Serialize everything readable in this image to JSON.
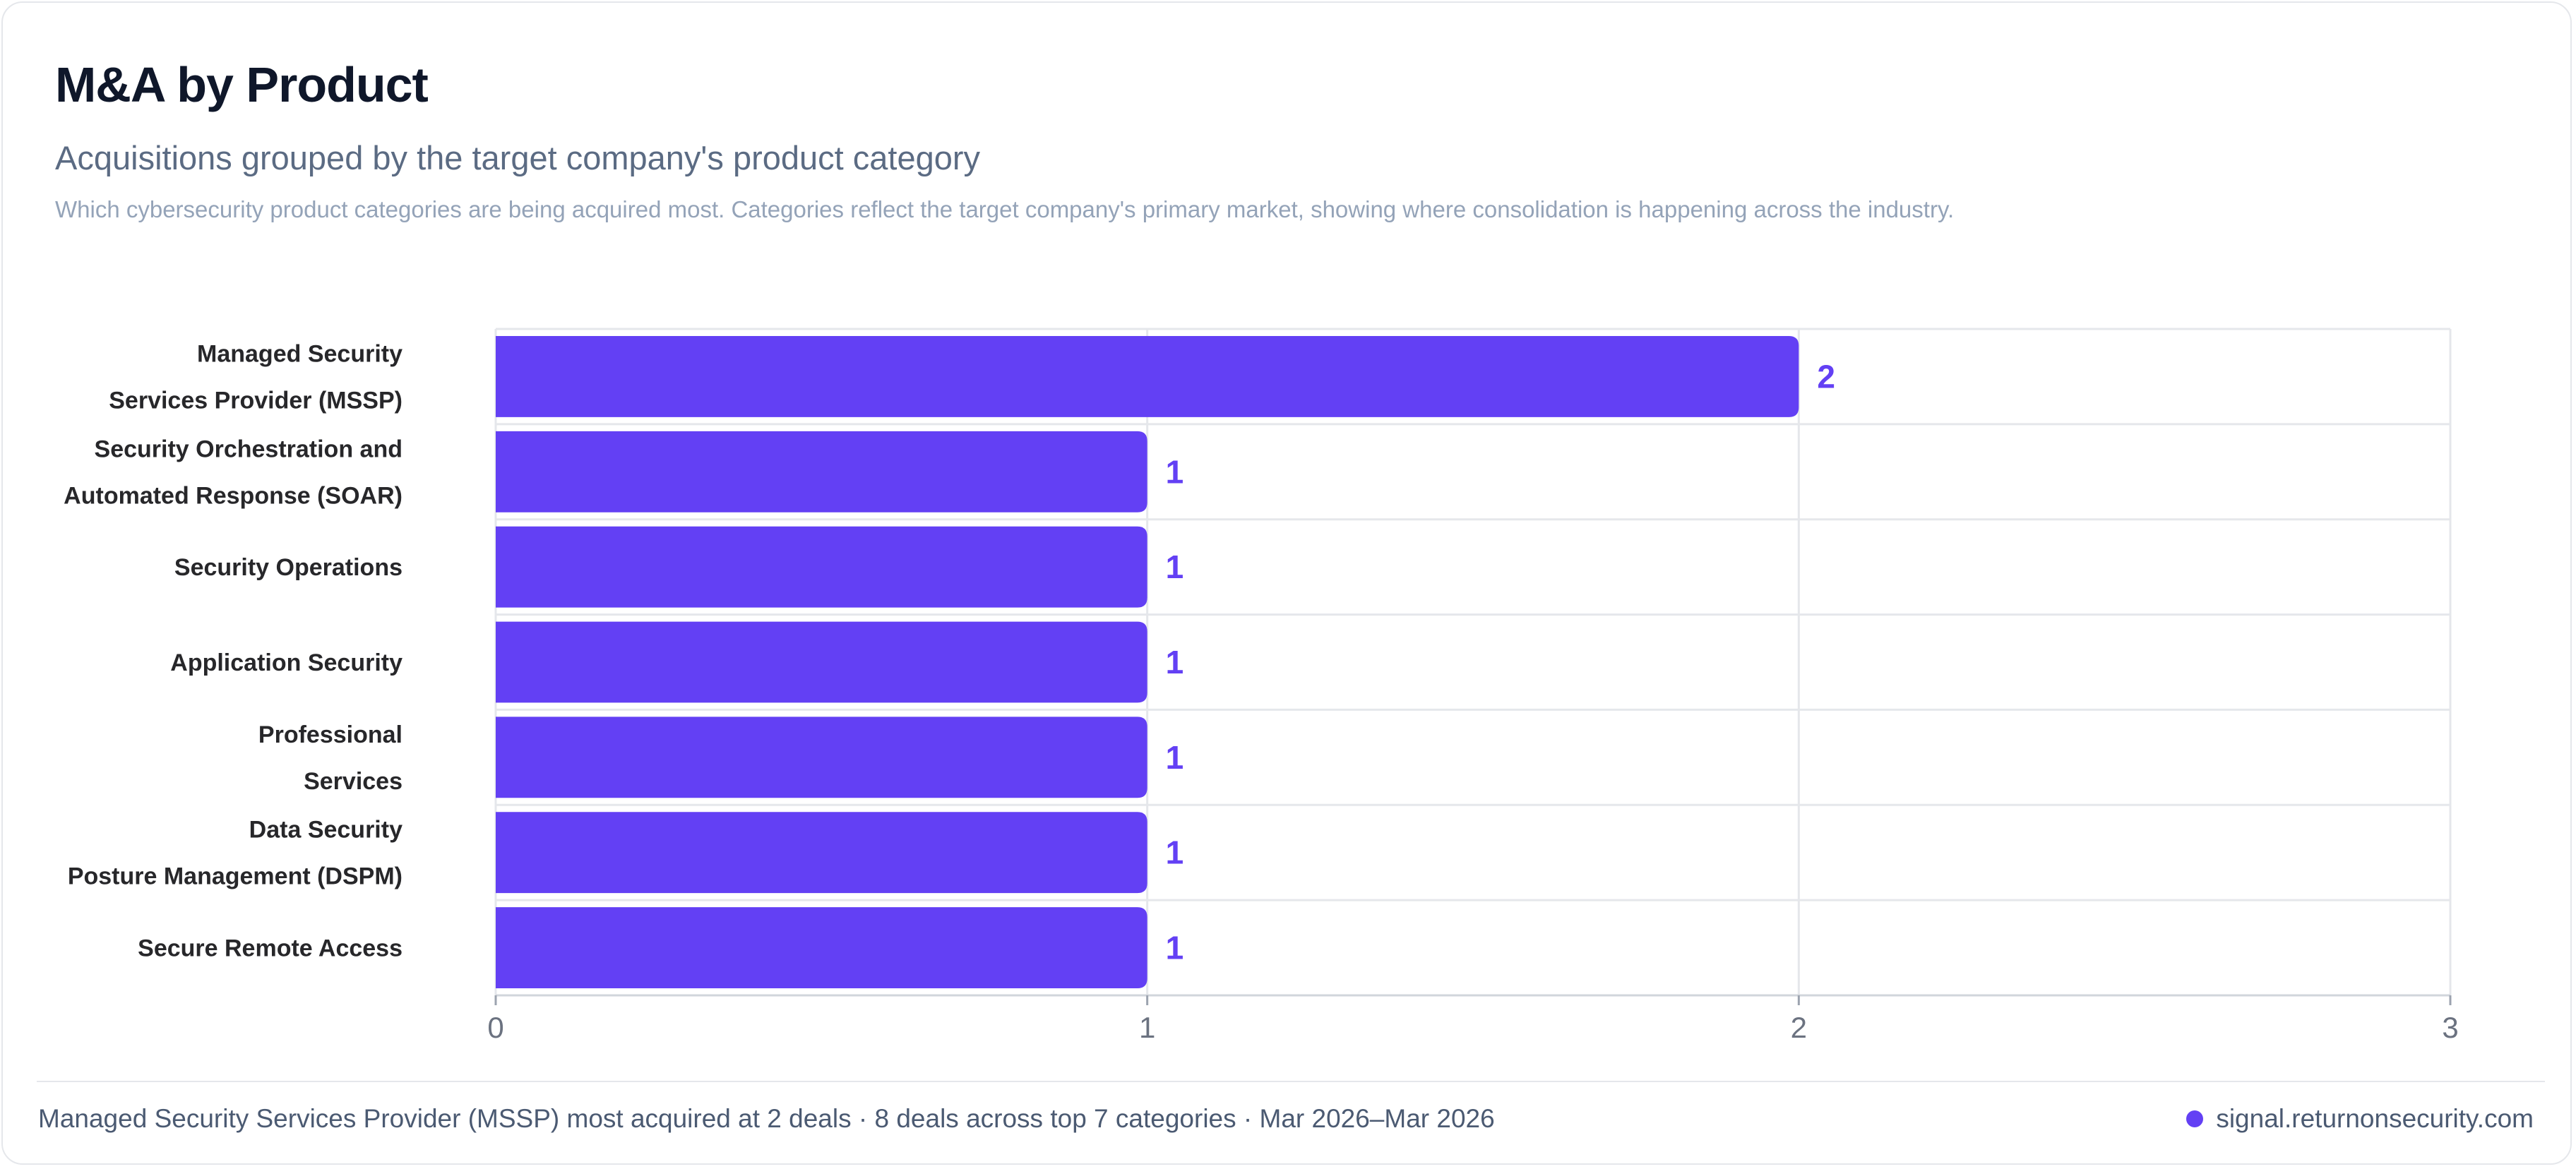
{
  "card": {
    "title": "M&A by Product",
    "subtitle": "Acquisitions grouped by the target company's product category",
    "description": "Which cybersecurity product categories are being acquired most. Categories reflect the target company's primary market, showing where consolidation is happening across the industry."
  },
  "chart_data": {
    "type": "bar",
    "orientation": "horizontal",
    "title": "M&A by Product",
    "subtitle": "Acquisitions grouped by the target company's product category",
    "xlabel": "",
    "ylabel": "",
    "categories": [
      "Managed Security Services Provider (MSSP)",
      "Security Orchestration and Automated Response (SOAR)",
      "Security Operations",
      "Application Security",
      "Professional Services",
      "Data Security Posture Management (DSPM)",
      "Secure Remote Access"
    ],
    "category_label_lines": [
      [
        "Managed Security",
        "Services Provider (MSSP)"
      ],
      [
        "Security Orchestration and",
        "Automated Response (SOAR)"
      ],
      [
        "Security Operations"
      ],
      [
        "Application Security"
      ],
      [
        "Professional",
        "Services"
      ],
      [
        "Data Security",
        "Posture Management (DSPM)"
      ],
      [
        "Secure Remote Access"
      ]
    ],
    "values": [
      2,
      1,
      1,
      1,
      1,
      1,
      1
    ],
    "xlim": [
      0,
      3
    ],
    "xticks": [
      0,
      1,
      2,
      3
    ],
    "grid": true,
    "data_labels": true,
    "bar_color": "#6340f4",
    "grid_color": "#e5e7eb"
  },
  "footer": {
    "summary": "Managed Security Services Provider (MSSP) most acquired at 2 deals · 8 deals across top 7 categories · Mar 2026–Mar 2026",
    "source": "signal.returnonsecurity.com",
    "dot_color": "#6340f4"
  }
}
